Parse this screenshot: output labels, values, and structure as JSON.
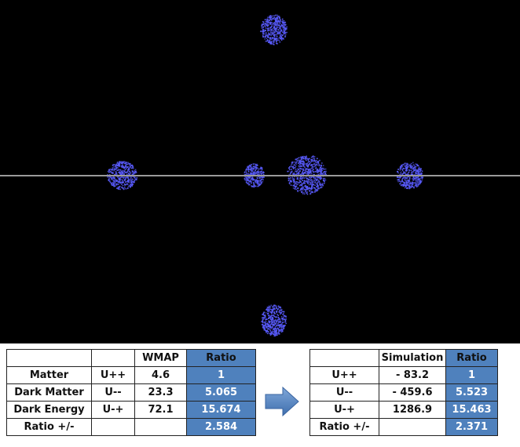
{
  "colors": {
    "background": "#000000",
    "particles": "#5a5cff",
    "axis": "#9a9a9a",
    "ratio_fill": "#4f81bd",
    "arrow": "#4f81bd"
  },
  "clusters": [
    {
      "name": "top"
    },
    {
      "name": "left"
    },
    {
      "name": "center-small"
    },
    {
      "name": "center-large"
    },
    {
      "name": "right"
    },
    {
      "name": "bottom"
    }
  ],
  "left_table": {
    "headers": [
      "",
      "",
      "WMAP",
      "Ratio"
    ],
    "rows": [
      [
        "Matter",
        "U++",
        "4.6",
        "1"
      ],
      [
        "Dark Matter",
        "U--",
        "23.3",
        "5.065"
      ],
      [
        "Dark Energy",
        "U-+",
        "72.1",
        "15.674"
      ],
      [
        "Ratio +/-",
        "",
        "",
        "2.584"
      ]
    ]
  },
  "right_table": {
    "headers": [
      "",
      "Simulation",
      "Ratio"
    ],
    "rows": [
      [
        "U++",
        "- 83.2",
        "1"
      ],
      [
        "U--",
        "- 459.6",
        "5.523"
      ],
      [
        "U-+",
        "1286.9",
        "15.463"
      ],
      [
        "Ratio +/-",
        "",
        "2.371"
      ]
    ]
  },
  "arrow_icon": "right-arrow-icon"
}
